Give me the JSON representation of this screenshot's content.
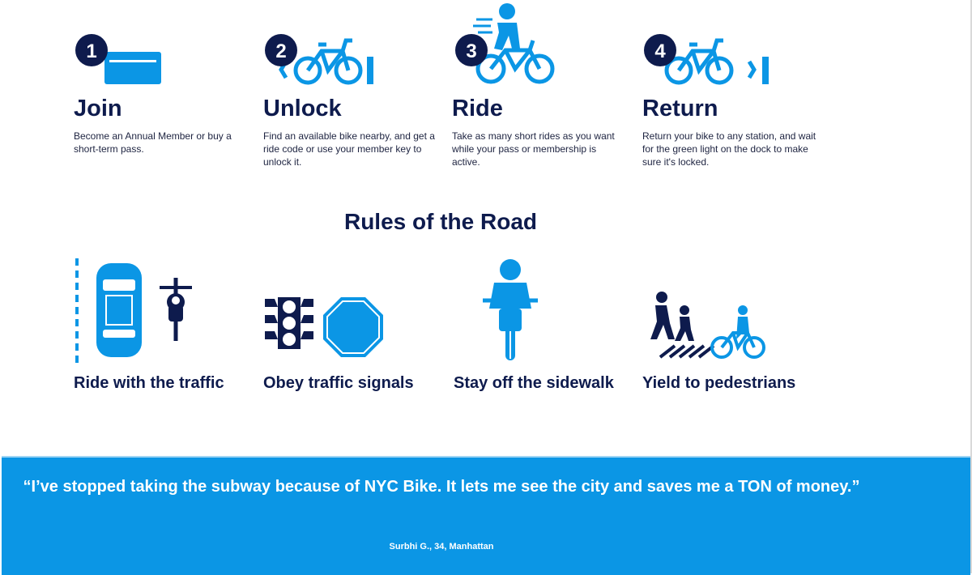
{
  "steps": [
    {
      "number": "1",
      "title": "Join",
      "desc": "Become an Annual Member or buy a short-term pass.",
      "icon": "card-icon"
    },
    {
      "number": "2",
      "title": "Unlock",
      "desc": "Find an available bike nearby, and get a ride code or use your member key to unlock it.",
      "icon": "bike-dock-unlock-icon"
    },
    {
      "number": "3",
      "title": "Ride",
      "desc": "Take as many short rides as you want while your pass or membership is active.",
      "icon": "rider-icon"
    },
    {
      "number": "4",
      "title": "Return",
      "desc": "Return your bike to any station, and wait for the green light on the dock to make sure it's locked.",
      "icon": "bike-dock-return-icon"
    }
  ],
  "rules": {
    "title": "Rules of the Road",
    "items": [
      {
        "label": "Ride with the traffic",
        "icon": "car-and-cyclist-icon"
      },
      {
        "label": "Obey traffic signals",
        "icon": "traffic-light-stop-sign-icon"
      },
      {
        "label": "Stay off the sidewalk",
        "icon": "cyclist-front-icon"
      },
      {
        "label": "Yield to pedestrians",
        "icon": "pedestrians-crosswalk-icon"
      }
    ]
  },
  "testimonial": {
    "quote": "“I’ve stopped taking the subway because of NYC Bike. It lets me see the city and saves me a TON of money.”",
    "author": "Surbhi G., 34, Manhattan"
  },
  "colors": {
    "navy": "#0e1b4d",
    "blue": "#0b96e5",
    "white": "#ffffff"
  }
}
